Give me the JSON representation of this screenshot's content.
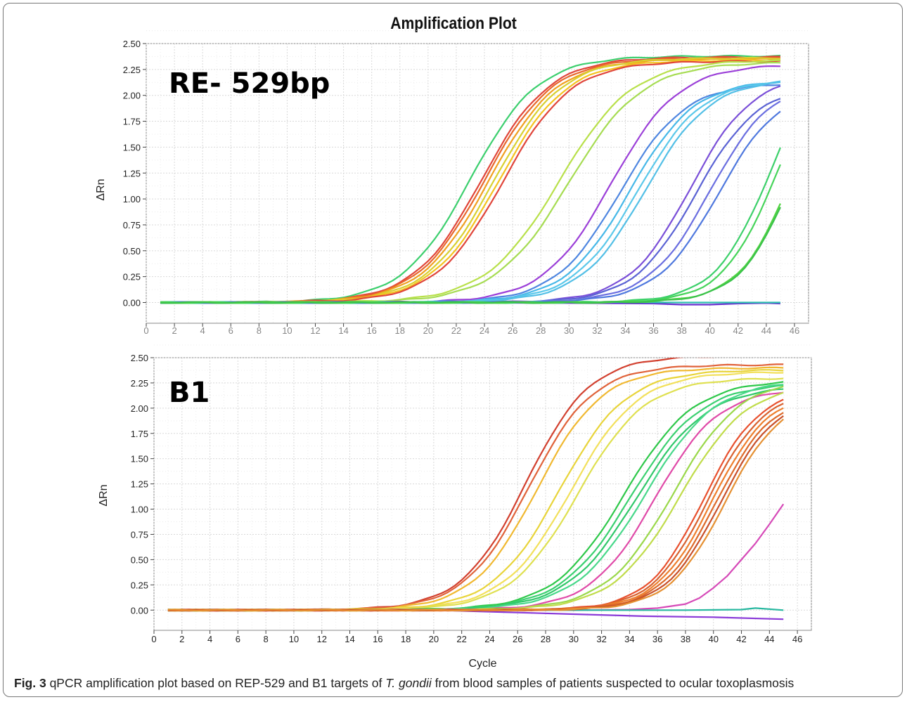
{
  "figure": {
    "title": "Amplification Plot",
    "caption_label": "Fig. 3",
    "caption_text_a": "qPCR amplification plot based on REP-529 and B1 targets of ",
    "caption_italic": "T. gondii",
    "caption_text_b": " from blood samples of patients suspected to ocular toxoplasmosis"
  },
  "chart_data": [
    {
      "type": "line",
      "panel_label": "RE- 529bp",
      "title": "",
      "xlabel": "",
      "ylabel": "ΔRn",
      "xlim": [
        0,
        47
      ],
      "ylim": [
        -0.2,
        2.5
      ],
      "xticks": [
        0,
        2,
        4,
        6,
        8,
        10,
        12,
        14,
        16,
        18,
        20,
        22,
        24,
        26,
        28,
        30,
        32,
        34,
        36,
        38,
        40,
        42,
        44,
        46
      ],
      "yticks": [
        0.0,
        0.25,
        0.5,
        0.75,
        1.0,
        1.25,
        1.5,
        1.75,
        2.0,
        2.25,
        2.5
      ],
      "grid": true,
      "x_range": [
        1,
        45
      ],
      "series_model": "sigmoid: y = plateau / (1 + exp(-(x - midpoint)/slope))",
      "series": [
        {
          "color": "#3ccf6e",
          "plateau": 2.38,
          "midpoint": 23.0,
          "slope": 2.4
        },
        {
          "color": "#e0453a",
          "plateau": 2.37,
          "midpoint": 23.8,
          "slope": 2.4
        },
        {
          "color": "#e8672c",
          "plateau": 2.36,
          "midpoint": 24.0,
          "slope": 2.4
        },
        {
          "color": "#f0a020",
          "plateau": 2.35,
          "midpoint": 24.3,
          "slope": 2.4
        },
        {
          "color": "#d8d030",
          "plateau": 2.36,
          "midpoint": 24.7,
          "slope": 2.4
        },
        {
          "color": "#f4c31f",
          "plateau": 2.34,
          "midpoint": 25.0,
          "slope": 2.4
        },
        {
          "color": "#e0453a",
          "plateau": 2.33,
          "midpoint": 25.3,
          "slope": 2.4
        },
        {
          "color": "#b8e04a",
          "plateau": 2.34,
          "midpoint": 29.3,
          "slope": 2.6
        },
        {
          "color": "#a6dc52",
          "plateau": 2.32,
          "midpoint": 30.0,
          "slope": 2.6
        },
        {
          "color": "#9b3fd8",
          "plateau": 2.3,
          "midpoint": 33.0,
          "slope": 2.4
        },
        {
          "color": "#4e86e0",
          "plateau": 2.12,
          "midpoint": 33.6,
          "slope": 2.3
        },
        {
          "color": "#46b8e8",
          "plateau": 2.15,
          "midpoint": 34.3,
          "slope": 2.3
        },
        {
          "color": "#5ac8ea",
          "plateau": 2.16,
          "midpoint": 34.9,
          "slope": 2.3
        },
        {
          "color": "#52bfe6",
          "plateau": 2.16,
          "midpoint": 35.4,
          "slope": 2.3
        },
        {
          "color": "#7a4fd8",
          "plateau": 2.2,
          "midpoint": 38.6,
          "slope": 2.2
        },
        {
          "color": "#5a62d4",
          "plateau": 2.1,
          "midpoint": 39.0,
          "slope": 2.2
        },
        {
          "color": "#6a6ee0",
          "plateau": 2.15,
          "midpoint": 40.0,
          "slope": 2.2
        },
        {
          "color": "#4f78de",
          "plateau": 2.1,
          "midpoint": 40.6,
          "slope": 2.2
        },
        {
          "color": "#3cd06a",
          "plateau": 2.6,
          "midpoint": 44.4,
          "slope": 2.0
        },
        {
          "color": "#46d45a",
          "plateau": 2.4,
          "midpoint": 44.6,
          "slope": 1.9
        },
        {
          "color": "#52d442",
          "plateau": 2.4,
          "midpoint": 45.8,
          "slope": 1.9
        },
        {
          "color": "#3ac24a",
          "plateau": 2.4,
          "midpoint": 45.9,
          "slope": 1.9
        }
      ],
      "baseline_series": [
        {
          "color": "#6a30d0",
          "x": [
            1,
            20,
            30,
            36,
            38,
            40,
            42,
            44,
            45
          ],
          "y": [
            0.0,
            0.0,
            -0.005,
            -0.01,
            -0.02,
            -0.02,
            -0.01,
            -0.005,
            -0.01
          ]
        },
        {
          "color": "#30c0b0",
          "x": [
            1,
            20,
            30,
            38,
            45
          ],
          "y": [
            0.0,
            0.0,
            0.005,
            0.0,
            0.0
          ]
        }
      ]
    },
    {
      "type": "line",
      "panel_label": "B1",
      "title": "",
      "xlabel": "Cycle",
      "ylabel": "ΔRn",
      "xlim": [
        0,
        47
      ],
      "ylim": [
        -0.2,
        2.5
      ],
      "xticks": [
        0,
        2,
        4,
        6,
        8,
        10,
        12,
        14,
        16,
        18,
        20,
        22,
        24,
        26,
        28,
        30,
        32,
        34,
        36,
        38,
        40,
        42,
        44,
        46
      ],
      "yticks": [
        0.0,
        0.25,
        0.5,
        0.75,
        1.0,
        1.25,
        1.5,
        1.75,
        2.0,
        2.25,
        2.5
      ],
      "grid": true,
      "x_range": [
        1,
        45
      ],
      "series_model": "sigmoid: y = plateau / (1 + exp(-(x - midpoint)/slope))",
      "series": [
        {
          "color": "#d2402f",
          "plateau": 2.52,
          "midpoint": 26.6,
          "slope": 2.3
        },
        {
          "color": "#e0623a",
          "plateau": 2.43,
          "midpoint": 26.8,
          "slope": 2.3
        },
        {
          "color": "#f0b830",
          "plateau": 2.4,
          "midpoint": 27.4,
          "slope": 2.3
        },
        {
          "color": "#e8d43a",
          "plateau": 2.38,
          "midpoint": 29.0,
          "slope": 2.4
        },
        {
          "color": "#f2e05a",
          "plateau": 2.36,
          "midpoint": 29.8,
          "slope": 2.4
        },
        {
          "color": "#dfe050",
          "plateau": 2.3,
          "midpoint": 30.3,
          "slope": 2.4
        },
        {
          "color": "#2ec84a",
          "plateau": 2.28,
          "midpoint": 33.6,
          "slope": 2.5
        },
        {
          "color": "#3ad070",
          "plateau": 2.25,
          "midpoint": 34.1,
          "slope": 2.5
        },
        {
          "color": "#30c86a",
          "plateau": 2.22,
          "midpoint": 34.5,
          "slope": 2.5
        },
        {
          "color": "#48d88a",
          "plateau": 2.28,
          "midpoint": 35.1,
          "slope": 2.5
        },
        {
          "color": "#e04aa8",
          "plateau": 2.2,
          "midpoint": 35.8,
          "slope": 2.3
        },
        {
          "color": "#9ad84a",
          "plateau": 2.3,
          "midpoint": 37.1,
          "slope": 2.4
        },
        {
          "color": "#c0dc4a",
          "plateau": 2.25,
          "midpoint": 37.6,
          "slope": 2.4
        },
        {
          "color": "#e8502e",
          "plateau": 2.2,
          "midpoint": 39.3,
          "slope": 2.0
        },
        {
          "color": "#d8612f",
          "plateau": 2.18,
          "midpoint": 39.6,
          "slope": 2.0
        },
        {
          "color": "#ee7e2c",
          "plateau": 2.16,
          "midpoint": 39.9,
          "slope": 2.0
        },
        {
          "color": "#dd6a2a",
          "plateau": 2.14,
          "midpoint": 40.2,
          "slope": 2.0
        },
        {
          "color": "#c8502a",
          "plateau": 2.13,
          "midpoint": 40.5,
          "slope": 2.0
        },
        {
          "color": "#e59032",
          "plateau": 2.12,
          "midpoint": 40.8,
          "slope": 2.0
        }
      ],
      "baseline_series": [
        {
          "color": "#d64ab8",
          "x": [
            1,
            30,
            34,
            36,
            37,
            38,
            39,
            40,
            41,
            42,
            43,
            44,
            45
          ],
          "y": [
            0.0,
            0.0,
            0.005,
            0.02,
            0.04,
            0.06,
            0.12,
            0.22,
            0.34,
            0.5,
            0.66,
            0.85,
            1.05
          ]
        },
        {
          "color": "#8a3ad8",
          "x": [
            1,
            20,
            25,
            30,
            35,
            40,
            45
          ],
          "y": [
            0.0,
            0.0,
            -0.02,
            -0.04,
            -0.06,
            -0.07,
            -0.09
          ]
        },
        {
          "color": "#28b8a0",
          "x": [
            1,
            20,
            30,
            38,
            42,
            43,
            45
          ],
          "y": [
            0.0,
            0.0,
            0.0,
            0.0,
            0.005,
            0.02,
            0.0
          ]
        }
      ]
    }
  ]
}
